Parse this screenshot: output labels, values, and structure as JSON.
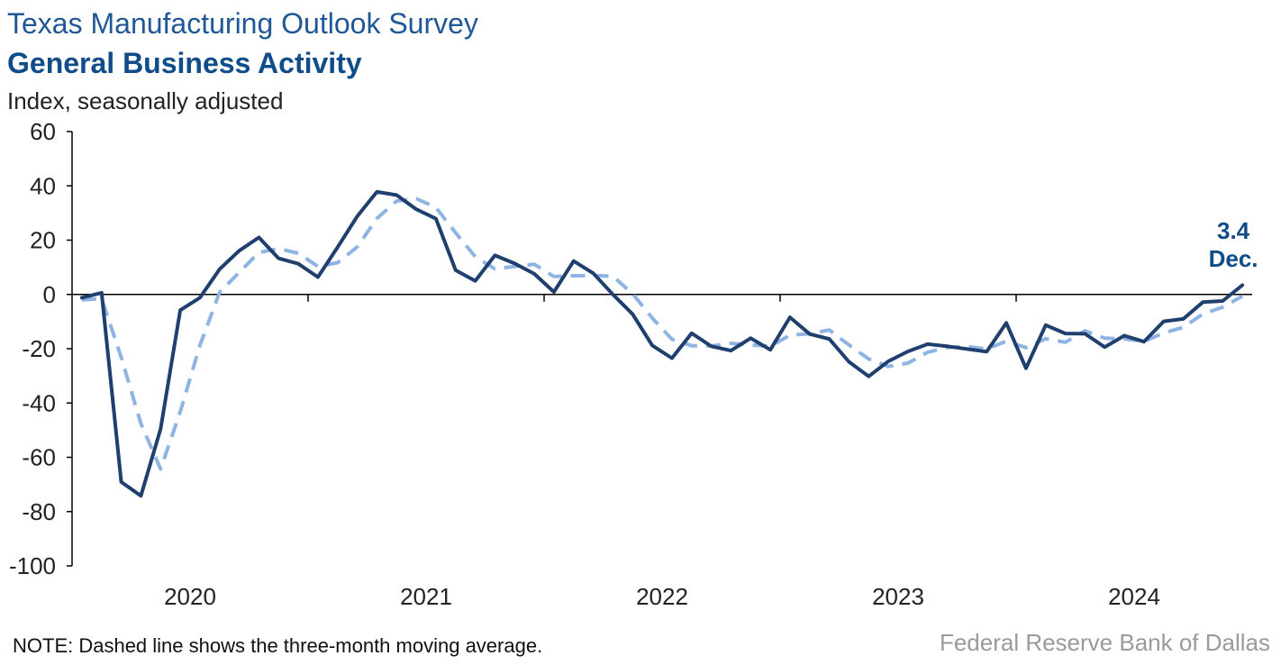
{
  "header": {
    "title": "Texas Manufacturing Outlook Survey",
    "subtitle": "General Business Activity",
    "ylabel": "Index, seasonally adjusted"
  },
  "footer": {
    "note": "NOTE: Dashed line shows the three-month moving average.",
    "source": "Federal Reserve Bank of Dallas"
  },
  "chart_data": {
    "type": "line",
    "title": "General Business Activity",
    "ylabel": "Index, seasonally adjusted",
    "ylim": [
      -100,
      60
    ],
    "yticks": [
      60,
      40,
      20,
      0,
      -20,
      -40,
      -60,
      -80,
      -100
    ],
    "x_start": "2020-01",
    "year_labels": [
      "2020",
      "2021",
      "2022",
      "2023",
      "2024"
    ],
    "legend": "none",
    "grid": false,
    "colors": {
      "index": "#1f3f6e",
      "average": "#8eb4e3"
    },
    "annotation": {
      "value": "3.4",
      "label": "Dec."
    },
    "series": [
      {
        "style": "solid",
        "values": [
          -1.2,
          0.6,
          -69.1,
          -74.2,
          -49.5,
          -5.8,
          -1.2,
          9.3,
          16.1,
          21.0,
          13.3,
          11.3,
          6.4,
          17.4,
          28.8,
          37.8,
          36.6,
          31.4,
          27.9,
          8.9,
          5.0,
          14.4,
          11.4,
          7.6,
          0.9,
          12.3,
          7.8,
          0.0,
          -7.3,
          -18.8,
          -23.5,
          -14.3,
          -19.1,
          -20.7,
          -16.1,
          -20.4,
          -8.4,
          -14.6,
          -16.4,
          -24.8,
          -30.2,
          -24.6,
          -21.0,
          -18.3,
          -19.1,
          -20.1,
          -21.1,
          -10.5,
          -27.2,
          -11.3,
          -14.4,
          -14.5,
          -19.4,
          -15.2,
          -17.4,
          -9.9,
          -9.0,
          -2.8,
          -2.4,
          3.4
        ]
      },
      {
        "style": "dashed",
        "values": [
          -2.0,
          -1.5,
          -23.2,
          -47.6,
          -64.3,
          -43.2,
          -18.8,
          0.8,
          8.1,
          15.5,
          16.8,
          15.2,
          10.3,
          11.7,
          17.5,
          28.0,
          34.4,
          35.3,
          32.0,
          22.7,
          13.9,
          9.4,
          10.3,
          11.1,
          6.6,
          6.9,
          7.0,
          6.7,
          0.2,
          -8.7,
          -16.5,
          -18.9,
          -19.0,
          -18.0,
          -18.6,
          -19.1,
          -15.0,
          -14.5,
          -13.1,
          -18.6,
          -23.8,
          -26.5,
          -25.3,
          -21.3,
          -19.5,
          -19.2,
          -20.1,
          -17.2,
          -19.6,
          -16.3,
          -17.6,
          -13.4,
          -16.1,
          -16.4,
          -17.3,
          -14.2,
          -12.1,
          -7.2,
          -4.7,
          -0.6
        ]
      }
    ]
  }
}
